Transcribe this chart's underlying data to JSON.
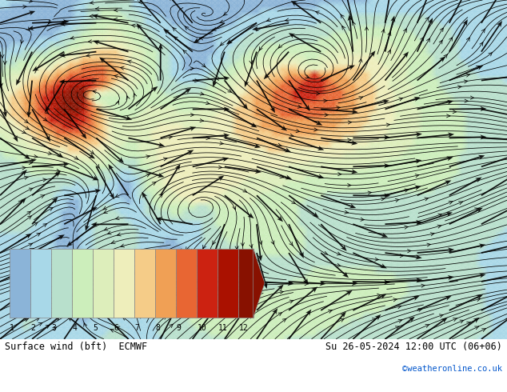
{
  "title_left": "Surface wind (bft)  ECMWF",
  "title_right": "Su 26-05-2024 12:00 UTC (06+06)",
  "subtitle_right": "©weatheronline.co.uk",
  "colorbar_ticks": [
    1,
    2,
    3,
    4,
    5,
    6,
    7,
    8,
    9,
    10,
    11,
    12
  ],
  "colorbar_colors": [
    "#8bb4d8",
    "#a8d8e8",
    "#b8e0cc",
    "#cceebb",
    "#ddeebb",
    "#eeeebb",
    "#f5cc88",
    "#f0a055",
    "#e86633",
    "#cc2211",
    "#aa1100",
    "#881100"
  ],
  "bg_color": "#ffffff",
  "map_bg": "#a8c8e8",
  "text_color_left": "#000000",
  "text_color_right": "#000000",
  "credit_color": "#0055cc",
  "fig_width": 6.34,
  "fig_height": 4.9,
  "dpi": 100
}
